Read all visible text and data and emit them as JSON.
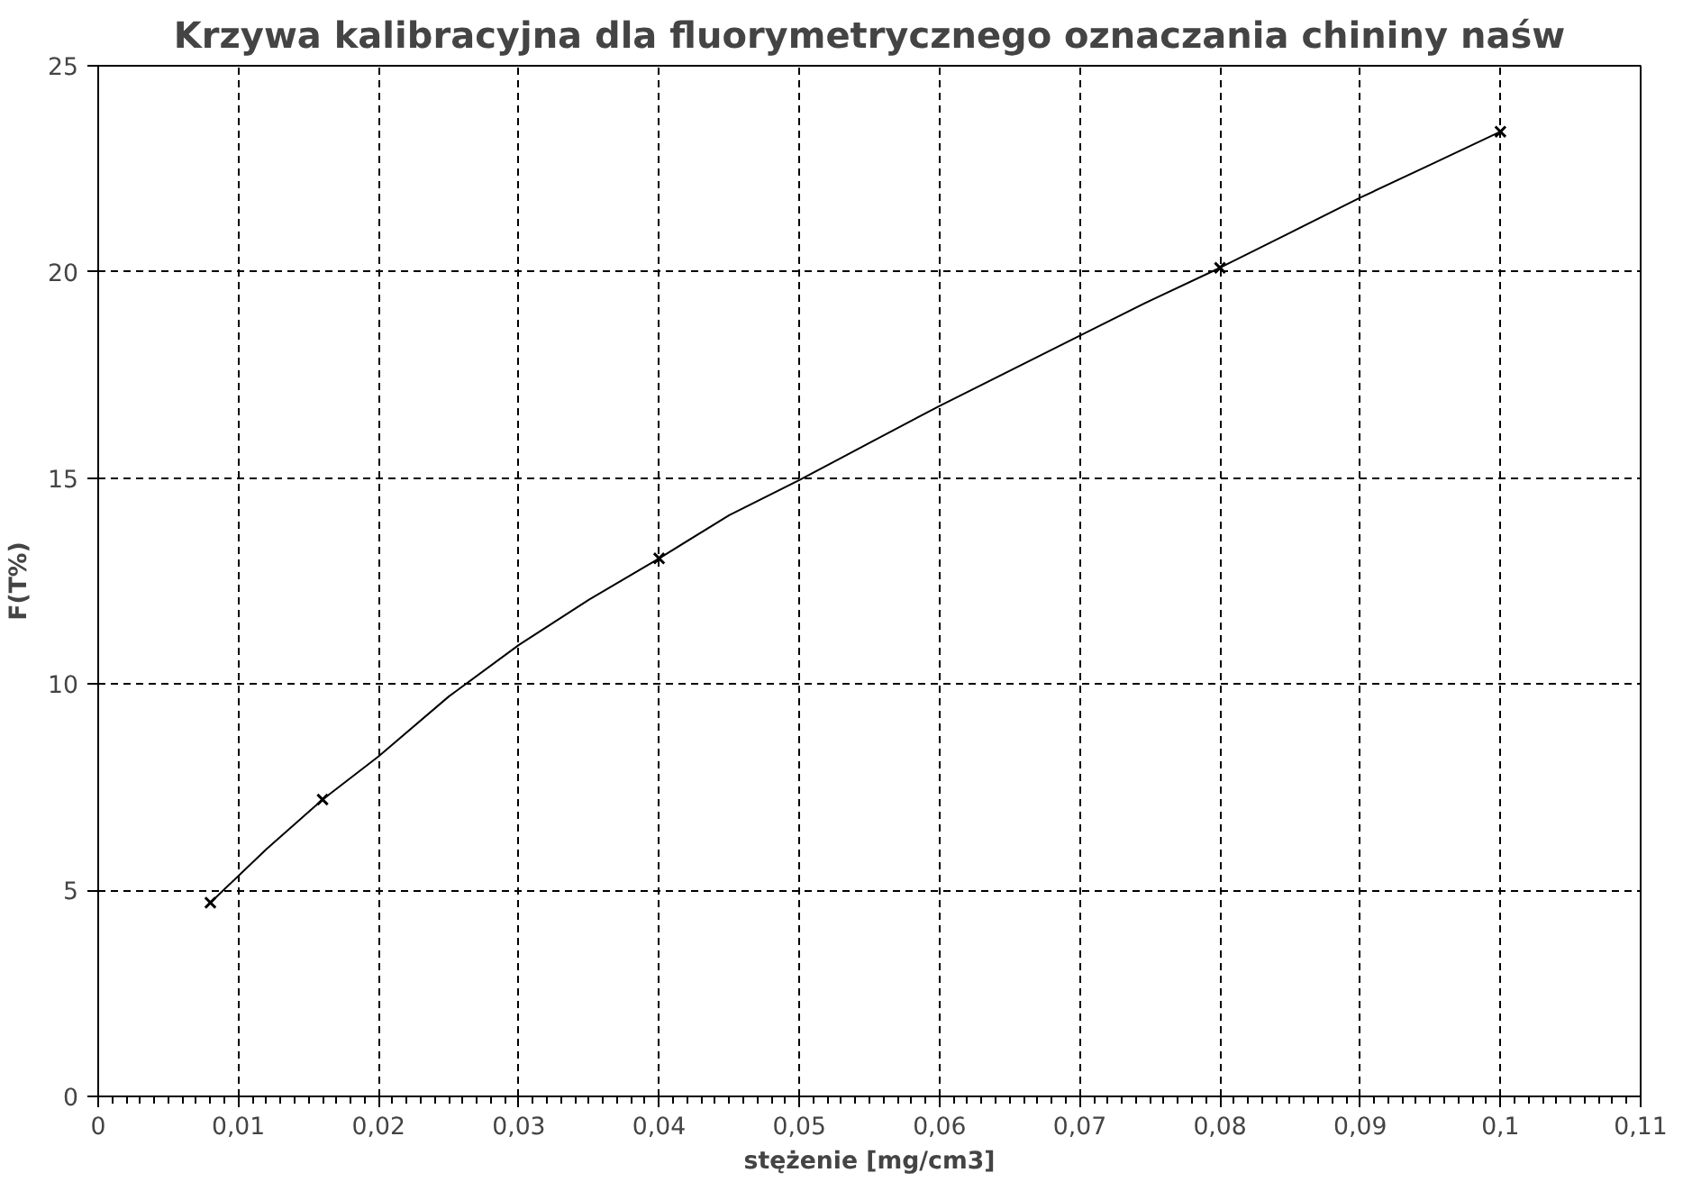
{
  "chart_data": {
    "type": "scatter",
    "title": "Krzywa kalibracyjna dla fluorymetrycznego oznaczania chininy naśw",
    "xlabel": "stężenie [mg/cm3]",
    "ylabel": "F(T%)",
    "series": [
      {
        "color": "#000000",
        "marker": "cross",
        "x": [
          0.008,
          0.016,
          0.04,
          0.08,
          0.1
        ],
        "values": [
          4.7,
          7.2,
          13.05,
          20.1,
          23.4
        ]
      },
      {
        "type": "line",
        "color": "#000000",
        "marker": "none",
        "x": [
          0.008,
          0.012,
          0.016,
          0.02,
          0.025,
          0.03,
          0.035,
          0.04,
          0.045,
          0.05,
          0.055,
          0.06,
          0.065,
          0.07,
          0.075,
          0.08,
          0.085,
          0.09,
          0.095,
          0.1
        ],
        "values": [
          4.7,
          6.0,
          7.2,
          8.25,
          9.7,
          10.95,
          12.05,
          13.05,
          14.1,
          14.95,
          15.85,
          16.75,
          17.6,
          18.45,
          19.3,
          20.1,
          20.95,
          21.8,
          22.6,
          23.4
        ]
      }
    ],
    "xlim": [
      0,
      0.11
    ],
    "ylim": [
      0,
      25
    ],
    "xticks": [
      0,
      {
        "value": 0.01,
        "label": "0,01"
      },
      {
        "value": 0.02,
        "label": "0,02"
      },
      {
        "value": 0.03,
        "label": "0,03"
      },
      {
        "value": 0.04,
        "label": "0,04"
      },
      {
        "value": 0.05,
        "label": "0,05"
      },
      {
        "value": 0.06,
        "label": "0,06"
      },
      {
        "value": 0.07,
        "label": "0,07"
      },
      {
        "value": 0.08,
        "label": "0,08"
      },
      {
        "value": 0.09,
        "label": "0,09"
      },
      {
        "value": 0.1,
        "label": "0,1"
      },
      {
        "value": 0.11,
        "label": "0,11"
      }
    ],
    "yticks": [
      0,
      5,
      10,
      15,
      20,
      25
    ],
    "grid": true
  }
}
